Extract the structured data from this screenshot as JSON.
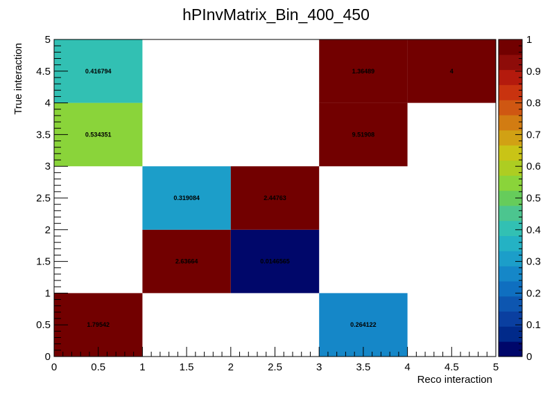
{
  "chart_data": {
    "type": "heatmap",
    "title": "hPInvMatrix_Bin_400_450",
    "xlabel": "Reco interaction",
    "ylabel": "True interaction",
    "xlim": [
      0,
      5
    ],
    "ylim": [
      0,
      5
    ],
    "zlim": [
      0,
      1
    ],
    "x_ticks": [
      "0",
      "0.5",
      "1",
      "1.5",
      "2",
      "2.5",
      "3",
      "3.5",
      "4",
      "4.5",
      "5"
    ],
    "y_ticks": [
      "0",
      "0.5",
      "1",
      "1.5",
      "2",
      "2.5",
      "3",
      "3.5",
      "4",
      "4.5",
      "5"
    ],
    "z_ticks": [
      "0",
      "0.1",
      "0.2",
      "0.3",
      "0.4",
      "0.5",
      "0.6",
      "0.7",
      "0.8",
      "0.9",
      "1"
    ],
    "cells": [
      {
        "x": [
          0,
          1
        ],
        "y": [
          0,
          1
        ],
        "value": 1.79542,
        "label": "1.79542"
      },
      {
        "x": [
          3,
          4
        ],
        "y": [
          0,
          1
        ],
        "value": 0.264122,
        "label": "0.264122"
      },
      {
        "x": [
          1,
          2
        ],
        "y": [
          1,
          2
        ],
        "value": 2.63664,
        "label": "2.63664"
      },
      {
        "x": [
          2,
          3
        ],
        "y": [
          1,
          2
        ],
        "value": 0.0146565,
        "label": "0.0146565"
      },
      {
        "x": [
          1,
          2
        ],
        "y": [
          2,
          3
        ],
        "value": 0.319084,
        "label": "0.319084"
      },
      {
        "x": [
          2,
          3
        ],
        "y": [
          2,
          3
        ],
        "value": 2.44763,
        "label": "2.44763"
      },
      {
        "x": [
          0,
          1
        ],
        "y": [
          3,
          4
        ],
        "value": 0.534351,
        "label": "0.534351"
      },
      {
        "x": [
          3,
          4
        ],
        "y": [
          3,
          4
        ],
        "value": 9.51908,
        "label": "9.51908"
      },
      {
        "x": [
          0,
          1
        ],
        "y": [
          4,
          5
        ],
        "value": 0.416794,
        "label": "0.416794"
      },
      {
        "x": [
          3,
          4
        ],
        "y": [
          4,
          5
        ],
        "value": 1.36489,
        "label": "1.36489"
      },
      {
        "x": [
          4,
          5
        ],
        "y": [
          4,
          5
        ],
        "value": 4,
        "label": "4"
      }
    ],
    "palette": [
      "#00076a",
      "#012a8a",
      "#0a3fa0",
      "#0d56b0",
      "#0f6fc0",
      "#1587c8",
      "#1c9ec9",
      "#24b2c4",
      "#32c0b3",
      "#4cc58f",
      "#66cc5b",
      "#8ad43a",
      "#adcd22",
      "#c9c416",
      "#d1a114",
      "#d27c12",
      "#cf5712",
      "#c9330f",
      "#b41a0d",
      "#8e0c09",
      "#720000"
    ],
    "grid": false,
    "legend": "colorbar-right"
  }
}
